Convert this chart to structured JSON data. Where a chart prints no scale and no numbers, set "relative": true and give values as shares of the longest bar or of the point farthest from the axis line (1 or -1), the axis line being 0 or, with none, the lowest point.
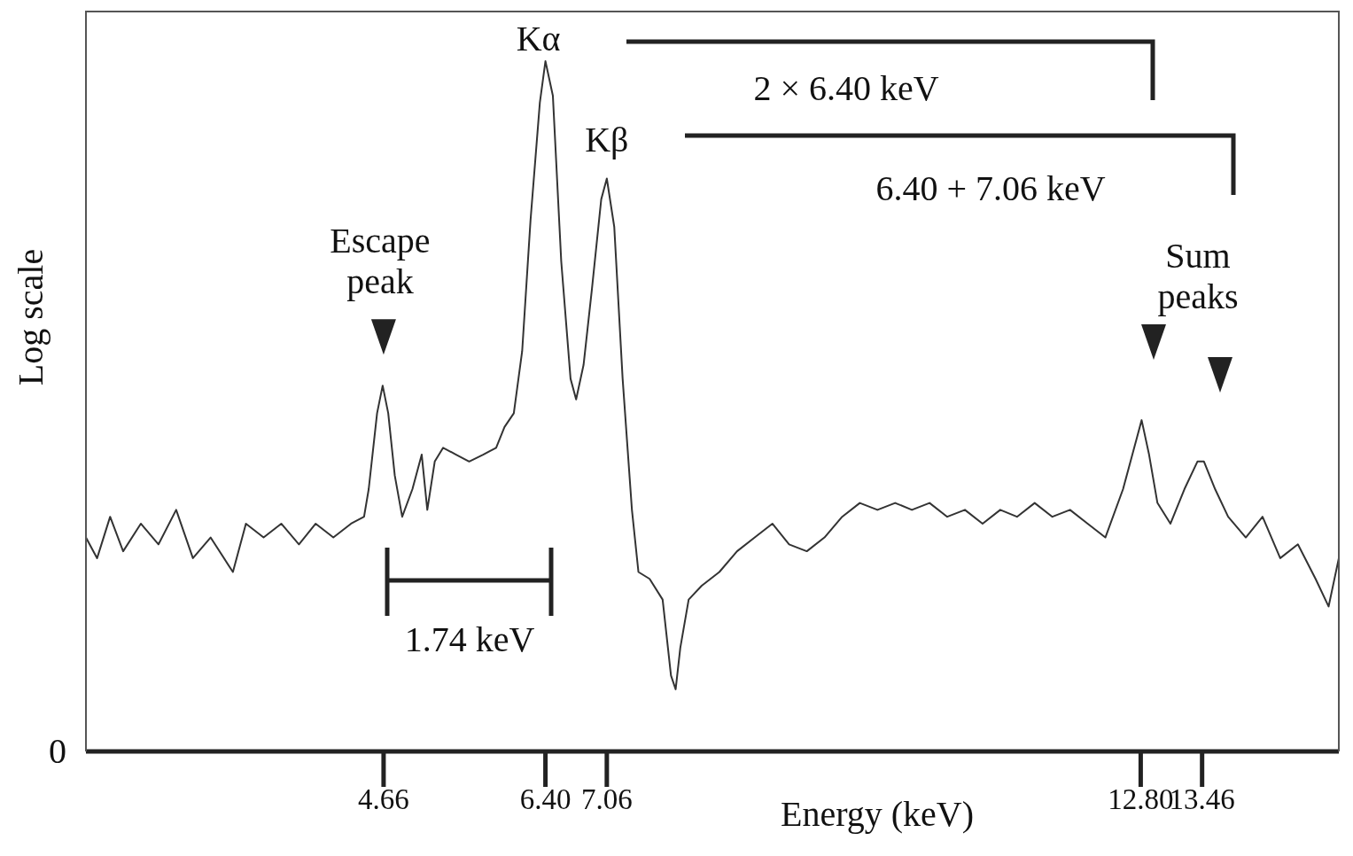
{
  "chart_data": {
    "type": "line",
    "relative": true,
    "xlabel": "Energy (keV)",
    "ylabel": "Log scale",
    "xlim": [
      1.46,
      14.93
    ],
    "xticks": [
      4.66,
      {
        "value": 6.4,
        "label": "6.40"
      },
      7.06,
      {
        "value": 12.8,
        "label": "12.80"
      },
      13.46
    ],
    "x": [
      1.46,
      1.58,
      1.72,
      1.86,
      2.05,
      2.24,
      2.43,
      2.61,
      2.8,
      3.04,
      3.18,
      3.37,
      3.56,
      3.75,
      3.93,
      4.12,
      4.31,
      4.45,
      4.5,
      4.59,
      4.65,
      4.71,
      4.78,
      4.86,
      4.97,
      5.07,
      5.13,
      5.21,
      5.3,
      5.44,
      5.58,
      5.73,
      5.87,
      5.96,
      6.06,
      6.15,
      6.24,
      6.34,
      6.4,
      6.48,
      6.57,
      6.67,
      6.73,
      6.81,
      6.9,
      7.0,
      7.06,
      7.14,
      7.23,
      7.33,
      7.4,
      7.52,
      7.66,
      7.75,
      7.8,
      7.85,
      7.94,
      8.08,
      8.27,
      8.46,
      8.65,
      8.84,
      9.02,
      9.21,
      9.4,
      9.59,
      9.78,
      9.97,
      10.16,
      10.34,
      10.53,
      10.72,
      10.91,
      11.1,
      11.29,
      11.47,
      11.66,
      11.85,
      12.04,
      12.23,
      12.42,
      12.61,
      12.75,
      12.81,
      12.89,
      12.98,
      13.12,
      13.27,
      13.41,
      13.48,
      13.6,
      13.74,
      13.93,
      14.11,
      14.3,
      14.49,
      14.68,
      14.82,
      14.93
    ],
    "series": [
      {
        "color": "#333333",
        "values": [
          0.31,
          0.28,
          0.34,
          0.29,
          0.33,
          0.3,
          0.35,
          0.28,
          0.31,
          0.26,
          0.33,
          0.31,
          0.33,
          0.3,
          0.33,
          0.31,
          0.33,
          0.34,
          0.38,
          0.49,
          0.53,
          0.49,
          0.4,
          0.34,
          0.38,
          0.43,
          0.35,
          0.42,
          0.44,
          0.43,
          0.42,
          0.43,
          0.44,
          0.47,
          0.49,
          0.58,
          0.77,
          0.94,
          1,
          0.95,
          0.71,
          0.54,
          0.51,
          0.56,
          0.67,
          0.8,
          0.83,
          0.76,
          0.54,
          0.35,
          0.26,
          0.25,
          0.22,
          0.11,
          0.09,
          0.15,
          0.22,
          0.24,
          0.26,
          0.29,
          0.31,
          0.33,
          0.3,
          0.29,
          0.31,
          0.34,
          0.36,
          0.35,
          0.36,
          0.35,
          0.36,
          0.34,
          0.35,
          0.33,
          0.35,
          0.34,
          0.36,
          0.34,
          0.35,
          0.33,
          0.31,
          0.38,
          0.45,
          0.48,
          0.43,
          0.36,
          0.33,
          0.38,
          0.42,
          0.42,
          0.38,
          0.34,
          0.31,
          0.34,
          0.28,
          0.3,
          0.25,
          0.21,
          0.28
        ]
      }
    ],
    "annotations": [
      {
        "text": "Kα",
        "x": 6.4,
        "y": 1
      },
      {
        "text": "Kβ",
        "x": 7.06,
        "y": 0.83
      },
      {
        "text": "Escape peak",
        "x": 4.66,
        "y": 0.53
      },
      "Sum peaks",
      "2 × 6.40 keV",
      "6.40 + 7.06 keV",
      "1.74 keV",
      "0"
    ]
  }
}
